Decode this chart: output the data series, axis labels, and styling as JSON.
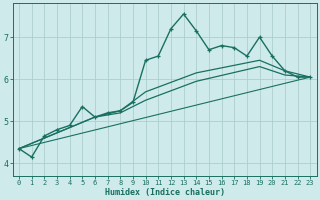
{
  "xlabel": "Humidex (Indice chaleur)",
  "bg_color": "#ceeaea",
  "grid_color": "#aecece",
  "line_color": "#1a7060",
  "xlim": [
    -0.5,
    23.5
  ],
  "ylim": [
    3.7,
    7.8
  ],
  "xticks": [
    0,
    1,
    2,
    3,
    4,
    5,
    6,
    7,
    8,
    9,
    10,
    11,
    12,
    13,
    14,
    15,
    16,
    17,
    18,
    19,
    20,
    21,
    22,
    23
  ],
  "yticks": [
    4,
    5,
    6,
    7
  ],
  "series": [
    {
      "x": [
        0,
        1,
        2,
        3,
        4,
        5,
        6,
        7,
        8,
        9,
        10,
        11,
        12,
        13,
        14,
        15,
        16,
        17,
        18,
        19,
        20,
        21,
        22,
        23
      ],
      "y": [
        4.35,
        4.15,
        4.65,
        4.8,
        4.9,
        5.35,
        5.1,
        5.2,
        5.25,
        5.45,
        6.45,
        6.55,
        7.2,
        7.55,
        7.15,
        6.7,
        6.8,
        6.75,
        6.55,
        7.0,
        6.55,
        6.2,
        6.05,
        6.05
      ],
      "marker": true,
      "linewidth": 1.0
    },
    {
      "x": [
        0,
        6,
        8,
        10,
        14,
        19,
        21,
        23
      ],
      "y": [
        4.35,
        5.1,
        5.25,
        5.7,
        6.15,
        6.45,
        6.2,
        6.05
      ],
      "marker": false,
      "linewidth": 0.9
    },
    {
      "x": [
        0,
        6,
        8,
        10,
        14,
        19,
        21,
        23
      ],
      "y": [
        4.35,
        5.1,
        5.2,
        5.5,
        5.95,
        6.3,
        6.1,
        6.05
      ],
      "marker": false,
      "linewidth": 0.9
    },
    {
      "x": [
        0,
        23
      ],
      "y": [
        4.35,
        6.05
      ],
      "marker": false,
      "linewidth": 0.8
    }
  ]
}
